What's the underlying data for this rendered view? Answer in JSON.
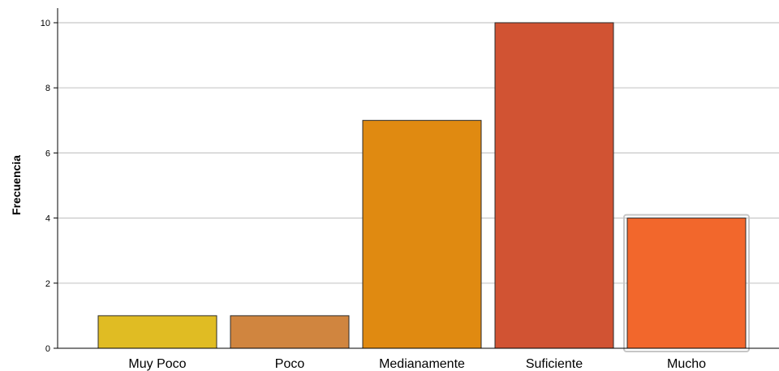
{
  "chart_data": {
    "type": "bar",
    "title": "",
    "xlabel": "",
    "ylabel": "Frecuencia",
    "categories": [
      "Muy Poco",
      "Poco",
      "Medianamente",
      "Suficiente",
      "Mucho"
    ],
    "values": [
      1,
      1,
      7,
      10,
      4
    ],
    "colors": [
      "#e0bc23",
      "#d0853f",
      "#e08a11",
      "#d15333",
      "#f2672c"
    ],
    "yticks": [
      "0",
      "2",
      "4",
      "6",
      "8",
      "10"
    ],
    "ylim": [
      0,
      10
    ],
    "grid": true,
    "highlighted_category": "Mucho"
  }
}
